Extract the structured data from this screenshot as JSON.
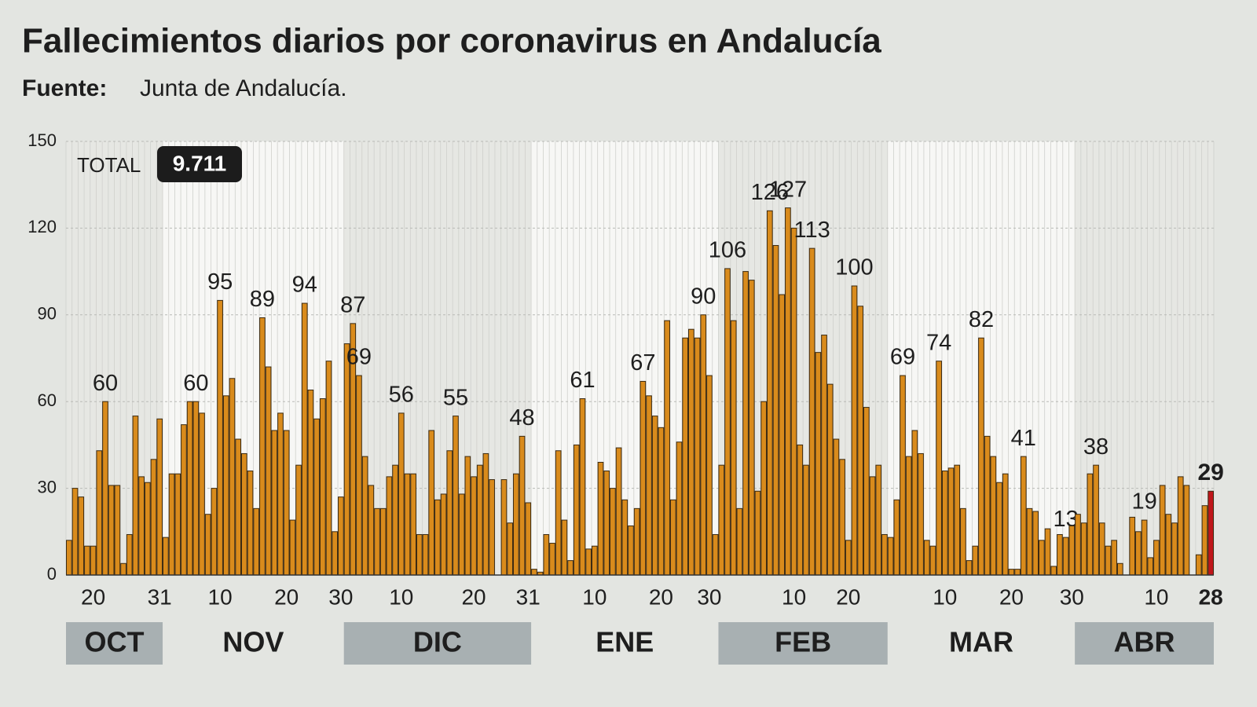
{
  "chart_data": {
    "type": "bar",
    "title": "Fallecimientos diarios por coronavirus en Andalucía",
    "source_label": "Fuente:",
    "source": "Junta de Andalucía.",
    "total_label": "TOTAL",
    "total": "9.711",
    "color": "#d98b1c",
    "highlight_color": "#c0161b",
    "ylim": [
      0,
      150
    ],
    "yticks": [
      0,
      30,
      60,
      90,
      120,
      150
    ],
    "grid": true,
    "months": [
      "OCT",
      "NOV",
      "DIC",
      "ENE",
      "FEB",
      "MAR",
      "ABR"
    ],
    "categories": [
      null,
      null,
      null,
      null,
      "20",
      null,
      null,
      null,
      null,
      null,
      null,
      null,
      null,
      null,
      null,
      "31",
      null,
      null,
      null,
      null,
      null,
      null,
      null,
      null,
      null,
      "10",
      null,
      null,
      null,
      null,
      null,
      null,
      null,
      null,
      null,
      null,
      "20",
      null,
      null,
      null,
      null,
      null,
      null,
      null,
      null,
      "30",
      null,
      null,
      null,
      null,
      null,
      null,
      null,
      null,
      null,
      "10",
      null,
      null,
      null,
      null,
      null,
      null,
      null,
      null,
      null,
      null,
      null,
      "20",
      null,
      null,
      null,
      null,
      null,
      null,
      null,
      null,
      "31",
      null,
      null,
      null,
      null,
      null,
      null,
      null,
      null,
      null,
      null,
      "10",
      null,
      null,
      null,
      null,
      null,
      null,
      null,
      null,
      null,
      null,
      "20",
      null,
      null,
      null,
      null,
      null,
      null,
      null,
      "30",
      null,
      null,
      null,
      null,
      null,
      null,
      null,
      null,
      null,
      null,
      null,
      null,
      null,
      "10",
      null,
      null,
      null,
      null,
      null,
      null,
      null,
      null,
      "20",
      null,
      null,
      null,
      null,
      null,
      null,
      null,
      null,
      null,
      null,
      null,
      null,
      null,
      null,
      null,
      "10",
      null,
      null,
      null,
      null,
      null,
      null,
      null,
      null,
      null,
      null,
      "20",
      null,
      null,
      null,
      null,
      null,
      null,
      null,
      null,
      null,
      "30",
      null,
      null,
      null,
      null,
      null,
      null,
      null,
      null,
      null,
      null,
      null,
      null,
      null,
      "10",
      null,
      null,
      null,
      null,
      null,
      null,
      null,
      null,
      "28"
    ],
    "values": [
      12,
      30,
      27,
      10,
      10,
      43,
      60,
      31,
      31,
      4,
      14,
      55,
      34,
      32,
      40,
      54,
      13,
      35,
      35,
      52,
      60,
      60,
      56,
      21,
      30,
      95,
      62,
      68,
      47,
      42,
      36,
      23,
      89,
      72,
      50,
      56,
      50,
      19,
      38,
      94,
      64,
      54,
      61,
      74,
      15,
      27,
      80,
      87,
      69,
      41,
      31,
      23,
      23,
      34,
      38,
      56,
      35,
      35,
      14,
      14,
      50,
      26,
      28,
      43,
      55,
      28,
      41,
      34,
      38,
      42,
      33,
      0,
      33,
      18,
      35,
      48,
      25,
      2,
      1,
      14,
      11,
      43,
      19,
      5,
      45,
      61,
      9,
      10,
      39,
      36,
      30,
      44,
      26,
      17,
      23,
      67,
      62,
      55,
      51,
      88,
      26,
      46,
      82,
      85,
      82,
      90,
      69,
      14,
      38,
      106,
      88,
      23,
      105,
      102,
      29,
      60,
      126,
      114,
      97,
      127,
      120,
      45,
      38,
      113,
      77,
      83,
      66,
      47,
      40,
      12,
      100,
      93,
      58,
      34,
      38,
      14,
      13,
      26,
      69,
      41,
      50,
      42,
      12,
      10,
      74,
      36,
      37,
      38,
      23,
      5,
      10,
      82,
      48,
      41,
      32,
      35,
      2,
      2,
      41,
      23,
      22,
      12,
      16,
      3,
      14,
      13,
      17,
      21,
      18,
      35,
      38,
      18,
      10,
      12,
      4,
      0,
      20,
      15,
      19,
      6,
      12,
      31,
      21,
      18,
      34,
      31,
      0,
      7,
      24,
      29
    ],
    "value_labels": [
      null,
      null,
      null,
      null,
      null,
      null,
      "60",
      null,
      null,
      null,
      null,
      null,
      null,
      null,
      null,
      null,
      null,
      null,
      null,
      null,
      null,
      "60",
      null,
      null,
      null,
      "95",
      null,
      null,
      null,
      null,
      null,
      null,
      "89",
      null,
      null,
      null,
      null,
      null,
      null,
      "94",
      null,
      null,
      null,
      null,
      null,
      null,
      null,
      "87",
      "69",
      null,
      null,
      null,
      null,
      null,
      null,
      "56",
      null,
      null,
      null,
      null,
      null,
      null,
      null,
      null,
      "55",
      null,
      null,
      null,
      null,
      null,
      null,
      null,
      null,
      null,
      null,
      "48",
      null,
      null,
      null,
      null,
      null,
      null,
      null,
      null,
      null,
      "61",
      null,
      null,
      null,
      null,
      null,
      null,
      null,
      null,
      null,
      "67",
      null,
      null,
      null,
      null,
      null,
      null,
      null,
      null,
      null,
      "90",
      null,
      null,
      null,
      "106",
      null,
      null,
      null,
      null,
      null,
      null,
      "126",
      null,
      null,
      "127",
      null,
      null,
      null,
      "113",
      null,
      null,
      null,
      null,
      null,
      null,
      "100",
      null,
      null,
      null,
      null,
      null,
      null,
      null,
      "69",
      null,
      null,
      null,
      null,
      null,
      "74",
      null,
      null,
      null,
      null,
      null,
      null,
      "82",
      null,
      null,
      null,
      null,
      null,
      null,
      "41",
      null,
      null,
      null,
      null,
      null,
      null,
      "13",
      null,
      null,
      null,
      null,
      "38",
      null,
      null,
      null,
      null,
      null,
      null,
      null,
      "19",
      null,
      null,
      null,
      null,
      null,
      null,
      null,
      null,
      null,
      null,
      "29"
    ]
  }
}
